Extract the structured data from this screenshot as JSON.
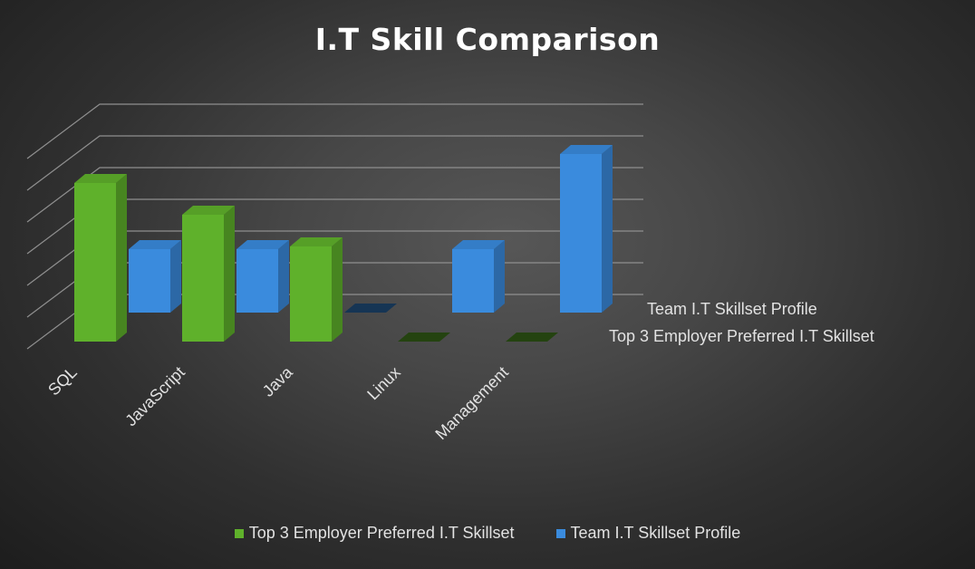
{
  "chart_data": {
    "type": "bar",
    "title": "I.T Skill Comparison",
    "categories": [
      "SQL",
      "JavaScript",
      "Java",
      "Linux",
      "Management"
    ],
    "series": [
      {
        "name": "Top 3 Employer Preferred I.T Skillset",
        "values": [
          5,
          4,
          3,
          0,
          0
        ],
        "color": "#5fb12b"
      },
      {
        "name": "Team I.T Skillset Profile",
        "values": [
          2,
          2,
          0,
          2,
          5
        ],
        "color": "#3a8bdd"
      }
    ],
    "ylim": [
      0,
      6
    ],
    "grid": true,
    "legend": "bottom"
  }
}
